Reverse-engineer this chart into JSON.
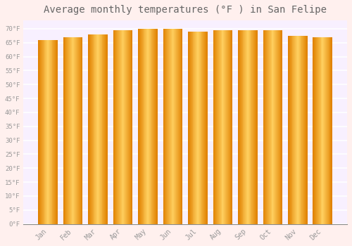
{
  "months": [
    "Jan",
    "Feb",
    "Mar",
    "Apr",
    "May",
    "Jun",
    "Jul",
    "Aug",
    "Sep",
    "Oct",
    "Nov",
    "Dec"
  ],
  "values": [
    66.0,
    67.0,
    68.0,
    69.5,
    70.0,
    70.0,
    69.0,
    69.5,
    69.5,
    69.5,
    67.5,
    67.0
  ],
  "bar_color_main": "#FFA500",
  "bar_color_light": "#FFD060",
  "bar_color_dark": "#E08000",
  "bar_edge_color": "#CC8800",
  "background_color": "#FFF0EE",
  "plot_bg_color": "#F8F0FF",
  "grid_color": "#FFFFFF",
  "title": "Average monthly temperatures (°F ) in San Felipe",
  "title_fontsize": 10,
  "tick_label_color": "#999999",
  "title_color": "#666666",
  "ylim": [
    0,
    73
  ],
  "yticks": [
    0,
    5,
    10,
    15,
    20,
    25,
    30,
    35,
    40,
    45,
    50,
    55,
    60,
    65,
    70
  ],
  "ytick_labels": [
    "0°F",
    "5°F",
    "10°F",
    "15°F",
    "20°F",
    "25°F",
    "30°F",
    "35°F",
    "40°F",
    "45°F",
    "50°F",
    "55°F",
    "60°F",
    "65°F",
    "70°F"
  ]
}
